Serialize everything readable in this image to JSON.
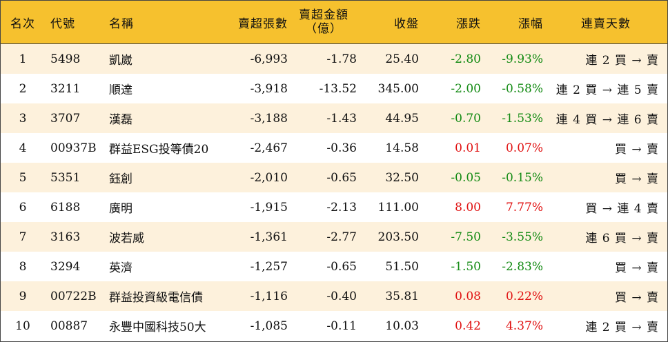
{
  "colors": {
    "header_bg": "#f6c12e",
    "odd_row_bg": "#fdf1dc",
    "even_row_bg": "#ffffff",
    "negative": "#128a12",
    "positive": "#e01010"
  },
  "header": {
    "rank": "名次",
    "code": "代號",
    "name": "名稱",
    "net_sell_shares": "賣超張數",
    "net_sell_amount_line1": "賣超金額",
    "net_sell_amount_line2": "（億）",
    "close": "收盤",
    "change": "漲跌",
    "change_pct": "漲幅",
    "streak": "連賣天數"
  },
  "rows": [
    {
      "rank": "1",
      "code": "5498",
      "name": "凱崴",
      "shares": "-6,993",
      "amount": "-1.78",
      "close": "25.40",
      "change": "-2.80",
      "pct": "-9.93%",
      "streak": "連 2 買 → 賣",
      "dir": "neg"
    },
    {
      "rank": "2",
      "code": "3211",
      "name": "順達",
      "shares": "-3,918",
      "amount": "-13.52",
      "close": "345.00",
      "change": "-2.00",
      "pct": "-0.58%",
      "streak": "連 2 買 → 連 5 賣",
      "dir": "neg"
    },
    {
      "rank": "3",
      "code": "3707",
      "name": "漢磊",
      "shares": "-3,188",
      "amount": "-1.43",
      "close": "44.95",
      "change": "-0.70",
      "pct": "-1.53%",
      "streak": "連 4 買 → 連 6 賣",
      "dir": "neg"
    },
    {
      "rank": "4",
      "code": "00937B",
      "name": "群益ESG投等債20",
      "shares": "-2,467",
      "amount": "-0.36",
      "close": "14.58",
      "change": "0.01",
      "pct": "0.07%",
      "streak": "買 → 賣",
      "dir": "pos"
    },
    {
      "rank": "5",
      "code": "5351",
      "name": "鈺創",
      "shares": "-2,010",
      "amount": "-0.65",
      "close": "32.50",
      "change": "-0.05",
      "pct": "-0.15%",
      "streak": "買 → 賣",
      "dir": "neg"
    },
    {
      "rank": "6",
      "code": "6188",
      "name": "廣明",
      "shares": "-1,915",
      "amount": "-2.13",
      "close": "111.00",
      "change": "8.00",
      "pct": "7.77%",
      "streak": "買 → 連 4 賣",
      "dir": "pos"
    },
    {
      "rank": "7",
      "code": "3163",
      "name": "波若威",
      "shares": "-1,361",
      "amount": "-2.77",
      "close": "203.50",
      "change": "-7.50",
      "pct": "-3.55%",
      "streak": "連 6 買 → 賣",
      "dir": "neg"
    },
    {
      "rank": "8",
      "code": "3294",
      "name": "英濟",
      "shares": "-1,257",
      "amount": "-0.65",
      "close": "51.50",
      "change": "-1.50",
      "pct": "-2.83%",
      "streak": "買 → 賣",
      "dir": "neg"
    },
    {
      "rank": "9",
      "code": "00722B",
      "name": "群益投資級電信債",
      "shares": "-1,116",
      "amount": "-0.40",
      "close": "35.81",
      "change": "0.08",
      "pct": "0.22%",
      "streak": "買 → 賣",
      "dir": "pos"
    },
    {
      "rank": "10",
      "code": "00887",
      "name": "永豐中國科技50大",
      "shares": "-1,085",
      "amount": "-0.11",
      "close": "10.03",
      "change": "0.42",
      "pct": "4.37%",
      "streak": "連 2 買 → 賣",
      "dir": "pos"
    }
  ]
}
